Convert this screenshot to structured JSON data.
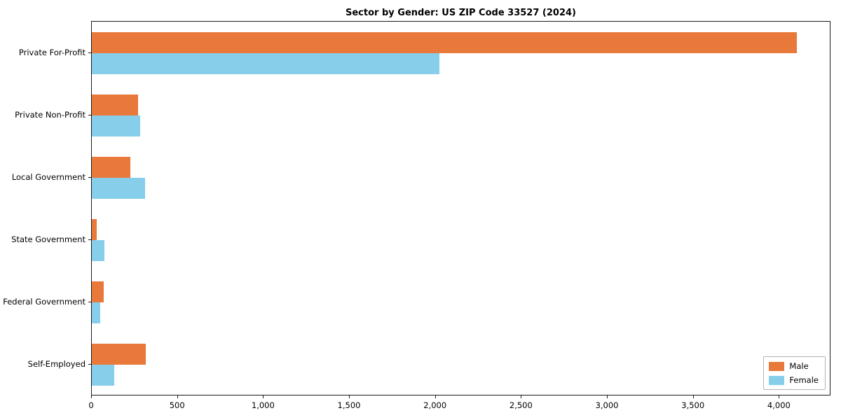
{
  "chart_data": {
    "type": "bar",
    "orientation": "horizontal",
    "title": "Sector by Gender: US ZIP Code 33527 (2024)",
    "categories": [
      "Private For-Profit",
      "Private Non-Profit",
      "Local Government",
      "State Government",
      "Federal Government",
      "Self-Employed"
    ],
    "series": [
      {
        "name": "Male",
        "color": "#e8793b",
        "values": [
          4100,
          270,
          225,
          30,
          70,
          315
        ]
      },
      {
        "name": "Female",
        "color": "#87ceeb",
        "values": [
          2020,
          280,
          310,
          75,
          50,
          130
        ]
      }
    ],
    "xlim": [
      0,
      4300
    ],
    "xticks": [
      0,
      500,
      1000,
      1500,
      2000,
      2500,
      3000,
      3500,
      4000
    ],
    "xlabel": "",
    "ylabel": "",
    "grid": false,
    "legend_position": "lower right",
    "axis_color": "#1a1a1a",
    "background_color": "#ffffff"
  }
}
